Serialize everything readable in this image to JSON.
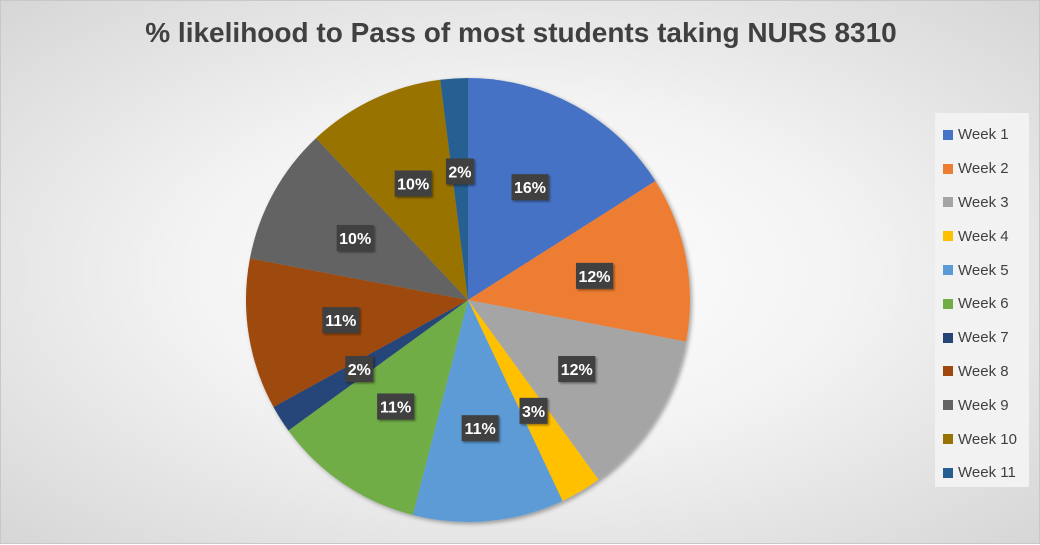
{
  "chart_data": {
    "type": "pie",
    "title": "% likelihood to Pass of most students taking NURS 8310",
    "categories": [
      "Week 1",
      "Week 2",
      "Week 3",
      "Week 4",
      "Week 5",
      "Week 6",
      "Week 7",
      "Week 8",
      "Week 9",
      "Week 10",
      "Week 11"
    ],
    "values": [
      16,
      12,
      12,
      3,
      11,
      11,
      2,
      11,
      10,
      10,
      2
    ],
    "labels": [
      "16%",
      "12%",
      "12%",
      "3%",
      "11%",
      "11%",
      "2%",
      "11%",
      "10%",
      "10%",
      "2%"
    ],
    "colors": [
      "#4472C4",
      "#ED7D31",
      "#A5A5A5",
      "#FFC000",
      "#5B9BD5",
      "#70AD47",
      "#264478",
      "#9E480E",
      "#636363",
      "#997300",
      "#255E91"
    ],
    "legend_position": "right",
    "start_angle": "top",
    "direction": "clockwise"
  }
}
